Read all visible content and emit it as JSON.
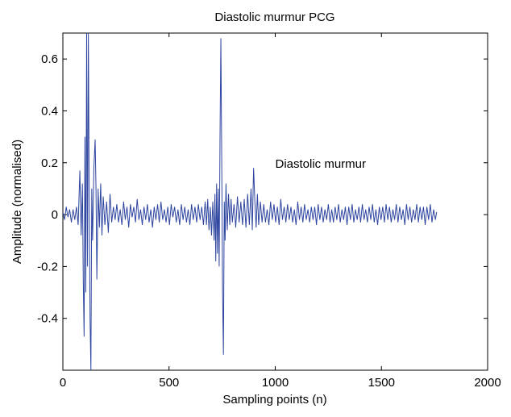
{
  "chart_data": {
    "type": "line",
    "title": "Diastolic murmur PCG",
    "xlabel": "Sampling points (n)",
    "ylabel": "Amplitude (normalised)",
    "xlim": [
      0,
      2000
    ],
    "ylim": [
      -0.6,
      0.7
    ],
    "xticks": [
      0,
      500,
      1000,
      1500,
      2000
    ],
    "xtick_labels": [
      "0",
      "500",
      "1000",
      "1500",
      "2000"
    ],
    "yticks": [
      -0.4,
      -0.2,
      0,
      0.2,
      0.4,
      0.6
    ],
    "ytick_labels": [
      "-0.4",
      "-0.2",
      "0",
      "0.2",
      "0.4",
      "0.6"
    ],
    "grid": false,
    "line_color": "#2f46a0",
    "annotation": {
      "text": "Diastolic murmur",
      "x": 1000,
      "y": 0.18
    },
    "series": [
      {
        "values": [
          [
            0,
            0.01
          ],
          [
            8,
            -0.02
          ],
          [
            16,
            0.03
          ],
          [
            24,
            -0.01
          ],
          [
            32,
            0.02
          ],
          [
            40,
            -0.03
          ],
          [
            48,
            0.02
          ],
          [
            56,
            -0.02
          ],
          [
            64,
            0.03
          ],
          [
            72,
            -0.04
          ],
          [
            80,
            0.17
          ],
          [
            86,
            -0.08
          ],
          [
            92,
            0.12
          ],
          [
            96,
            -0.25
          ],
          [
            100,
            -0.47
          ],
          [
            104,
            0.3
          ],
          [
            108,
            -0.3
          ],
          [
            112,
            0.7
          ],
          [
            116,
            -0.2
          ],
          [
            120,
            0.7
          ],
          [
            124,
            0.1
          ],
          [
            128,
            -0.4
          ],
          [
            132,
            -0.6
          ],
          [
            136,
            0.1
          ],
          [
            140,
            -0.1
          ],
          [
            146,
            0.18
          ],
          [
            152,
            0.29
          ],
          [
            156,
            0.1
          ],
          [
            160,
            -0.25
          ],
          [
            166,
            0.1
          ],
          [
            172,
            -0.05
          ],
          [
            178,
            0.12
          ],
          [
            184,
            -0.08
          ],
          [
            190,
            0.07
          ],
          [
            198,
            -0.04
          ],
          [
            206,
            0.05
          ],
          [
            214,
            -0.07
          ],
          [
            222,
            0.08
          ],
          [
            230,
            -0.03
          ],
          [
            238,
            0.03
          ],
          [
            246,
            -0.02
          ],
          [
            254,
            0.04
          ],
          [
            262,
            -0.03
          ],
          [
            270,
            0.02
          ],
          [
            278,
            -0.04
          ],
          [
            286,
            0.05
          ],
          [
            294,
            -0.02
          ],
          [
            302,
            0.03
          ],
          [
            310,
            -0.05
          ],
          [
            318,
            0.04
          ],
          [
            326,
            -0.01
          ],
          [
            334,
            0.03
          ],
          [
            342,
            -0.03
          ],
          [
            350,
            0.06
          ],
          [
            358,
            -0.02
          ],
          [
            366,
            0.02
          ],
          [
            374,
            -0.04
          ],
          [
            382,
            0.03
          ],
          [
            390,
            -0.02
          ],
          [
            398,
            0.04
          ],
          [
            406,
            -0.03
          ],
          [
            414,
            0.02
          ],
          [
            422,
            -0.05
          ],
          [
            430,
            0.03
          ],
          [
            438,
            -0.02
          ],
          [
            446,
            0.04
          ],
          [
            454,
            -0.03
          ],
          [
            462,
            0.05
          ],
          [
            470,
            -0.02
          ],
          [
            478,
            0.02
          ],
          [
            486,
            -0.03
          ],
          [
            494,
            0.03
          ],
          [
            502,
            -0.04
          ],
          [
            510,
            0.04
          ],
          [
            518,
            -0.01
          ],
          [
            526,
            0.03
          ],
          [
            534,
            -0.03
          ],
          [
            542,
            0.02
          ],
          [
            550,
            -0.04
          ],
          [
            558,
            0.04
          ],
          [
            566,
            -0.02
          ],
          [
            574,
            0.03
          ],
          [
            582,
            -0.03
          ],
          [
            590,
            0.02
          ],
          [
            598,
            -0.04
          ],
          [
            606,
            0.04
          ],
          [
            614,
            -0.02
          ],
          [
            622,
            0.03
          ],
          [
            630,
            -0.03
          ],
          [
            638,
            0.04
          ],
          [
            646,
            -0.02
          ],
          [
            654,
            0.03
          ],
          [
            662,
            -0.04
          ],
          [
            670,
            0.05
          ],
          [
            676,
            -0.04
          ],
          [
            682,
            0.06
          ],
          [
            688,
            -0.06
          ],
          [
            694,
            0.03
          ],
          [
            700,
            -0.08
          ],
          [
            706,
            0.05
          ],
          [
            712,
            -0.1
          ],
          [
            716,
            0.08
          ],
          [
            720,
            -0.18
          ],
          [
            724,
            0.12
          ],
          [
            728,
            -0.15
          ],
          [
            732,
            0.1
          ],
          [
            736,
            -0.2
          ],
          [
            740,
            0.3
          ],
          [
            744,
            0.68
          ],
          [
            748,
            0.2
          ],
          [
            752,
            -0.3
          ],
          [
            756,
            -0.54
          ],
          [
            760,
            0.05
          ],
          [
            764,
            -0.1
          ],
          [
            768,
            0.12
          ],
          [
            774,
            -0.06
          ],
          [
            780,
            0.08
          ],
          [
            786,
            -0.04
          ],
          [
            792,
            0.06
          ],
          [
            798,
            -0.03
          ],
          [
            806,
            0.04
          ],
          [
            814,
            -0.05
          ],
          [
            822,
            0.07
          ],
          [
            830,
            -0.03
          ],
          [
            838,
            0.05
          ],
          [
            846,
            -0.04
          ],
          [
            854,
            0.06
          ],
          [
            862,
            -0.05
          ],
          [
            870,
            0.08
          ],
          [
            878,
            -0.04
          ],
          [
            886,
            0.1
          ],
          [
            892,
            -0.06
          ],
          [
            898,
            0.18
          ],
          [
            904,
            0.05
          ],
          [
            910,
            -0.05
          ],
          [
            916,
            0.08
          ],
          [
            922,
            -0.04
          ],
          [
            930,
            0.05
          ],
          [
            938,
            -0.03
          ],
          [
            946,
            0.04
          ],
          [
            954,
            -0.03
          ],
          [
            962,
            0.02
          ],
          [
            970,
            -0.04
          ],
          [
            978,
            0.05
          ],
          [
            986,
            -0.02
          ],
          [
            994,
            0.04
          ],
          [
            1002,
            -0.03
          ],
          [
            1010,
            0.03
          ],
          [
            1018,
            -0.04
          ],
          [
            1026,
            0.06
          ],
          [
            1034,
            -0.02
          ],
          [
            1042,
            0.03
          ],
          [
            1050,
            -0.03
          ],
          [
            1058,
            0.04
          ],
          [
            1066,
            -0.02
          ],
          [
            1074,
            0.03
          ],
          [
            1082,
            -0.03
          ],
          [
            1090,
            0.02
          ],
          [
            1098,
            -0.04
          ],
          [
            1106,
            0.05
          ],
          [
            1114,
            -0.02
          ],
          [
            1122,
            0.03
          ],
          [
            1130,
            -0.03
          ],
          [
            1138,
            0.04
          ],
          [
            1146,
            -0.02
          ],
          [
            1154,
            0.02
          ],
          [
            1162,
            -0.03
          ],
          [
            1170,
            0.03
          ],
          [
            1178,
            -0.02
          ],
          [
            1186,
            0.03
          ],
          [
            1194,
            -0.04
          ],
          [
            1202,
            0.04
          ],
          [
            1210,
            -0.02
          ],
          [
            1218,
            0.03
          ],
          [
            1226,
            -0.03
          ],
          [
            1234,
            0.02
          ],
          [
            1242,
            -0.02
          ],
          [
            1250,
            0.04
          ],
          [
            1258,
            -0.03
          ],
          [
            1266,
            0.02
          ],
          [
            1274,
            -0.03
          ],
          [
            1282,
            0.03
          ],
          [
            1290,
            -0.02
          ],
          [
            1298,
            0.04
          ],
          [
            1306,
            -0.03
          ],
          [
            1314,
            0.02
          ],
          [
            1322,
            -0.02
          ],
          [
            1330,
            0.03
          ],
          [
            1338,
            -0.04
          ],
          [
            1346,
            0.03
          ],
          [
            1354,
            -0.02
          ],
          [
            1362,
            0.04
          ],
          [
            1370,
            -0.03
          ],
          [
            1378,
            0.02
          ],
          [
            1386,
            -0.02
          ],
          [
            1394,
            0.03
          ],
          [
            1402,
            -0.03
          ],
          [
            1410,
            0.04
          ],
          [
            1418,
            -0.02
          ],
          [
            1426,
            0.02
          ],
          [
            1434,
            -0.03
          ],
          [
            1442,
            0.03
          ],
          [
            1450,
            -0.02
          ],
          [
            1458,
            0.04
          ],
          [
            1466,
            -0.03
          ],
          [
            1474,
            0.02
          ],
          [
            1482,
            -0.04
          ],
          [
            1490,
            0.03
          ],
          [
            1498,
            -0.02
          ],
          [
            1506,
            0.03
          ],
          [
            1514,
            -0.03
          ],
          [
            1522,
            0.04
          ],
          [
            1530,
            -0.02
          ],
          [
            1538,
            0.03
          ],
          [
            1546,
            -0.03
          ],
          [
            1554,
            0.02
          ],
          [
            1562,
            -0.02
          ],
          [
            1570,
            0.04
          ],
          [
            1578,
            -0.03
          ],
          [
            1586,
            0.03
          ],
          [
            1594,
            -0.02
          ],
          [
            1602,
            0.02
          ],
          [
            1610,
            -0.04
          ],
          [
            1618,
            0.04
          ],
          [
            1626,
            -0.02
          ],
          [
            1634,
            0.03
          ],
          [
            1642,
            -0.03
          ],
          [
            1650,
            0.02
          ],
          [
            1658,
            -0.02
          ],
          [
            1666,
            0.04
          ],
          [
            1674,
            -0.03
          ],
          [
            1682,
            0.03
          ],
          [
            1690,
            -0.02
          ],
          [
            1698,
            0.03
          ],
          [
            1706,
            -0.04
          ],
          [
            1714,
            0.03
          ],
          [
            1722,
            -0.02
          ],
          [
            1730,
            0.04
          ],
          [
            1738,
            -0.03
          ],
          [
            1746,
            0.02
          ],
          [
            1754,
            -0.02
          ],
          [
            1760,
            0.01
          ]
        ]
      }
    ]
  }
}
